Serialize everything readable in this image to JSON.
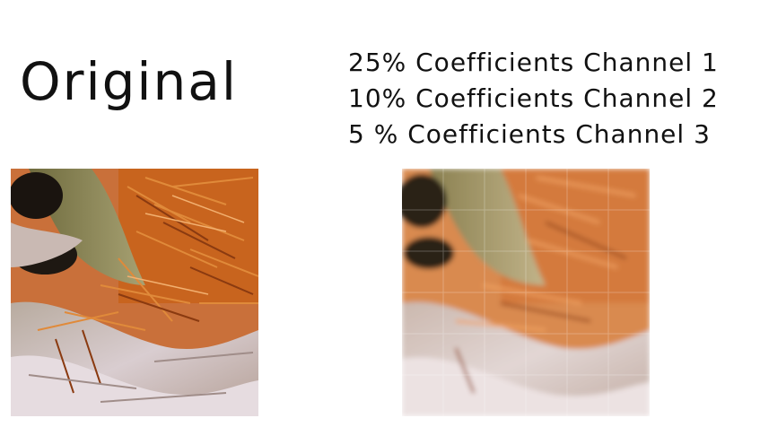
{
  "original_label": "Original",
  "compressed_caption": {
    "lines": [
      "25% Coefficients Channel 1",
      "10%  Coefficients Channel 2",
      "5  %  Coefficients Channel 3"
    ]
  },
  "images": {
    "original": {
      "subject": "pine needles and bark texture",
      "colors": {
        "bark": "#c9b9b3",
        "needles": "#d0611c",
        "shadow": "#1a140f",
        "moss": "#8a8a4a"
      }
    },
    "compressed": {
      "subject": "pine needles and bark texture, lossy reconstruction",
      "colors": {
        "bark": "#d6c4bb",
        "needles": "#d87a3a",
        "shadow": "#2a2018",
        "moss": "#9a9460"
      }
    }
  }
}
